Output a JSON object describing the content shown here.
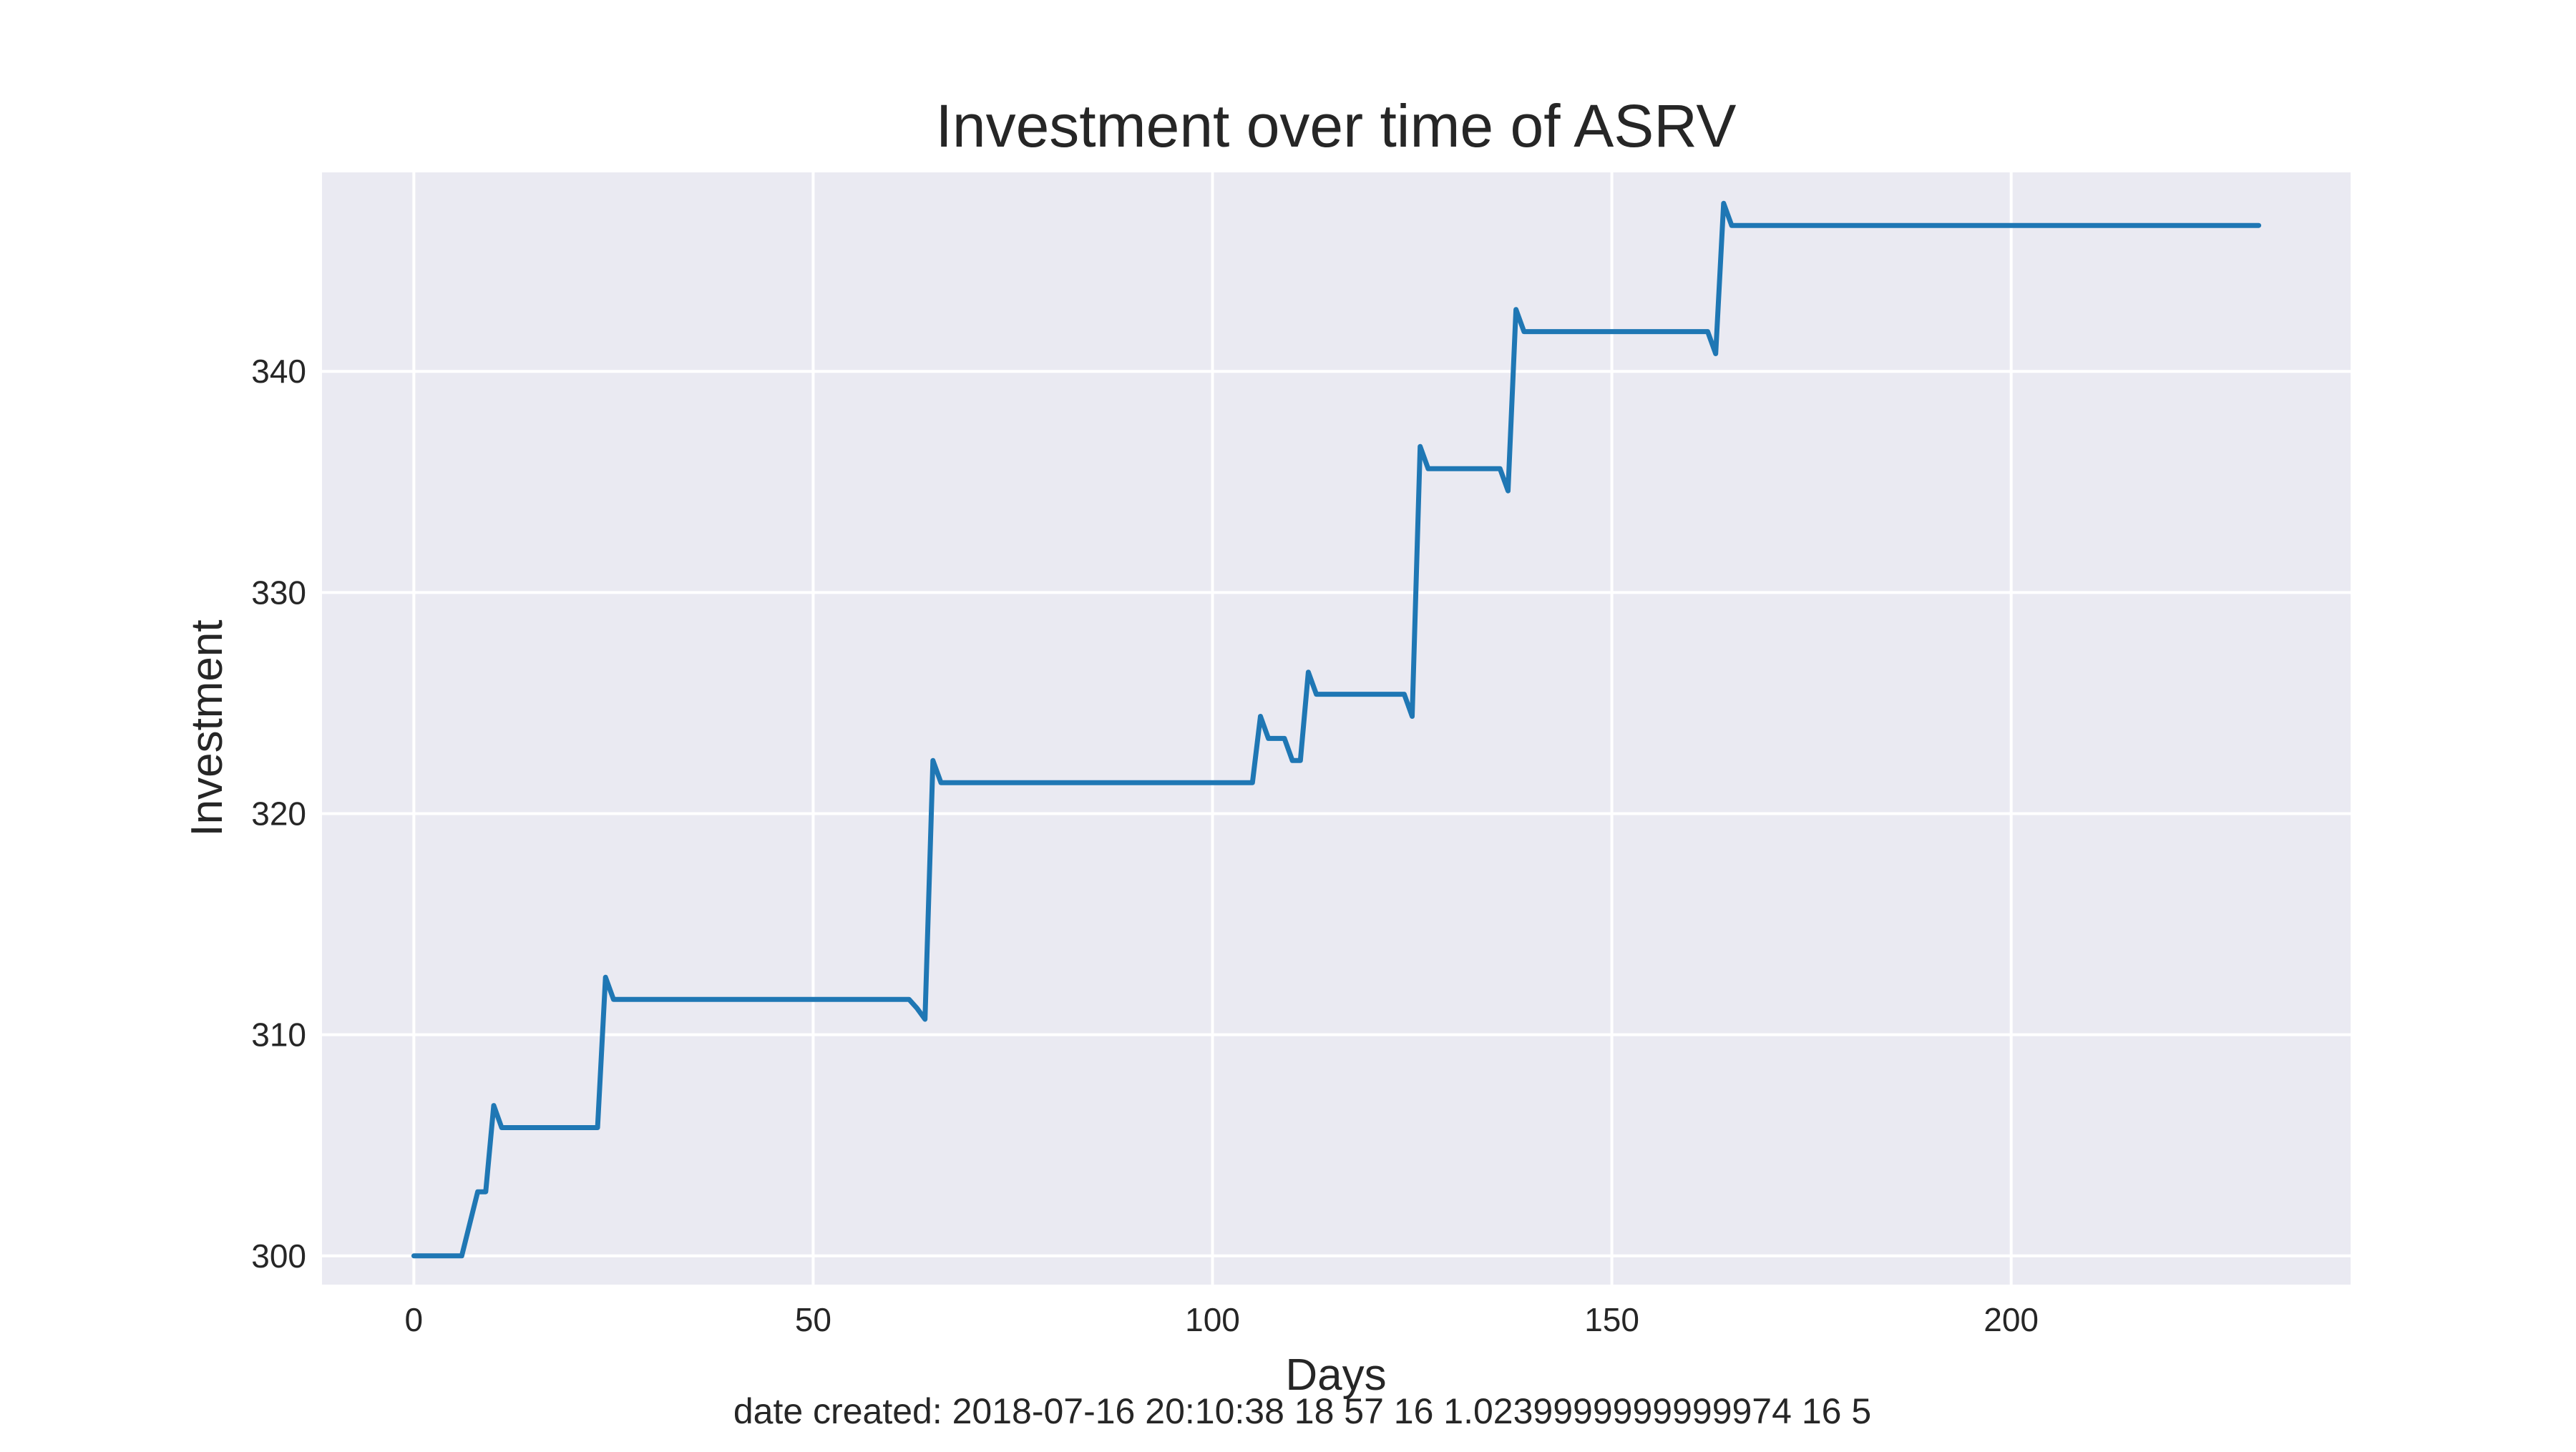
{
  "chart_data": {
    "type": "line",
    "title": "Investment over time of ASRV",
    "xlabel": "Days",
    "ylabel": "Investment",
    "xlim": [
      -11.5,
      242.5
    ],
    "ylim": [
      298.7,
      349.0
    ],
    "xticks": [
      0,
      50,
      100,
      150,
      200
    ],
    "yticks": [
      300,
      310,
      320,
      330,
      340
    ],
    "grid": true,
    "background": "#eaeaf2",
    "grid_color": "#ffffff",
    "series": [
      {
        "name": "",
        "color": "#1f77b4",
        "x": [
          0,
          6,
          8,
          9,
          10,
          11,
          23,
          24,
          25,
          62,
          63,
          64,
          65,
          66,
          105,
          106,
          107,
          109,
          110,
          111,
          112,
          113,
          124,
          125,
          126,
          127,
          128,
          136,
          137,
          138,
          139,
          162,
          163,
          164,
          165,
          231
        ],
        "y": [
          300.0,
          300.0,
          302.9,
          302.9,
          306.8,
          305.8,
          305.8,
          312.6,
          311.6,
          311.6,
          311.2,
          310.7,
          322.4,
          321.4,
          321.4,
          324.4,
          323.4,
          323.4,
          322.4,
          322.4,
          326.4,
          325.4,
          325.4,
          324.4,
          336.6,
          335.6,
          335.6,
          335.6,
          334.6,
          342.8,
          341.8,
          341.8,
          340.8,
          347.6,
          346.6,
          346.6
        ]
      }
    ],
    "footer": "date created: 2018-07-16 20:10:38 18 57 16 1.0239999999999974 16 5"
  }
}
